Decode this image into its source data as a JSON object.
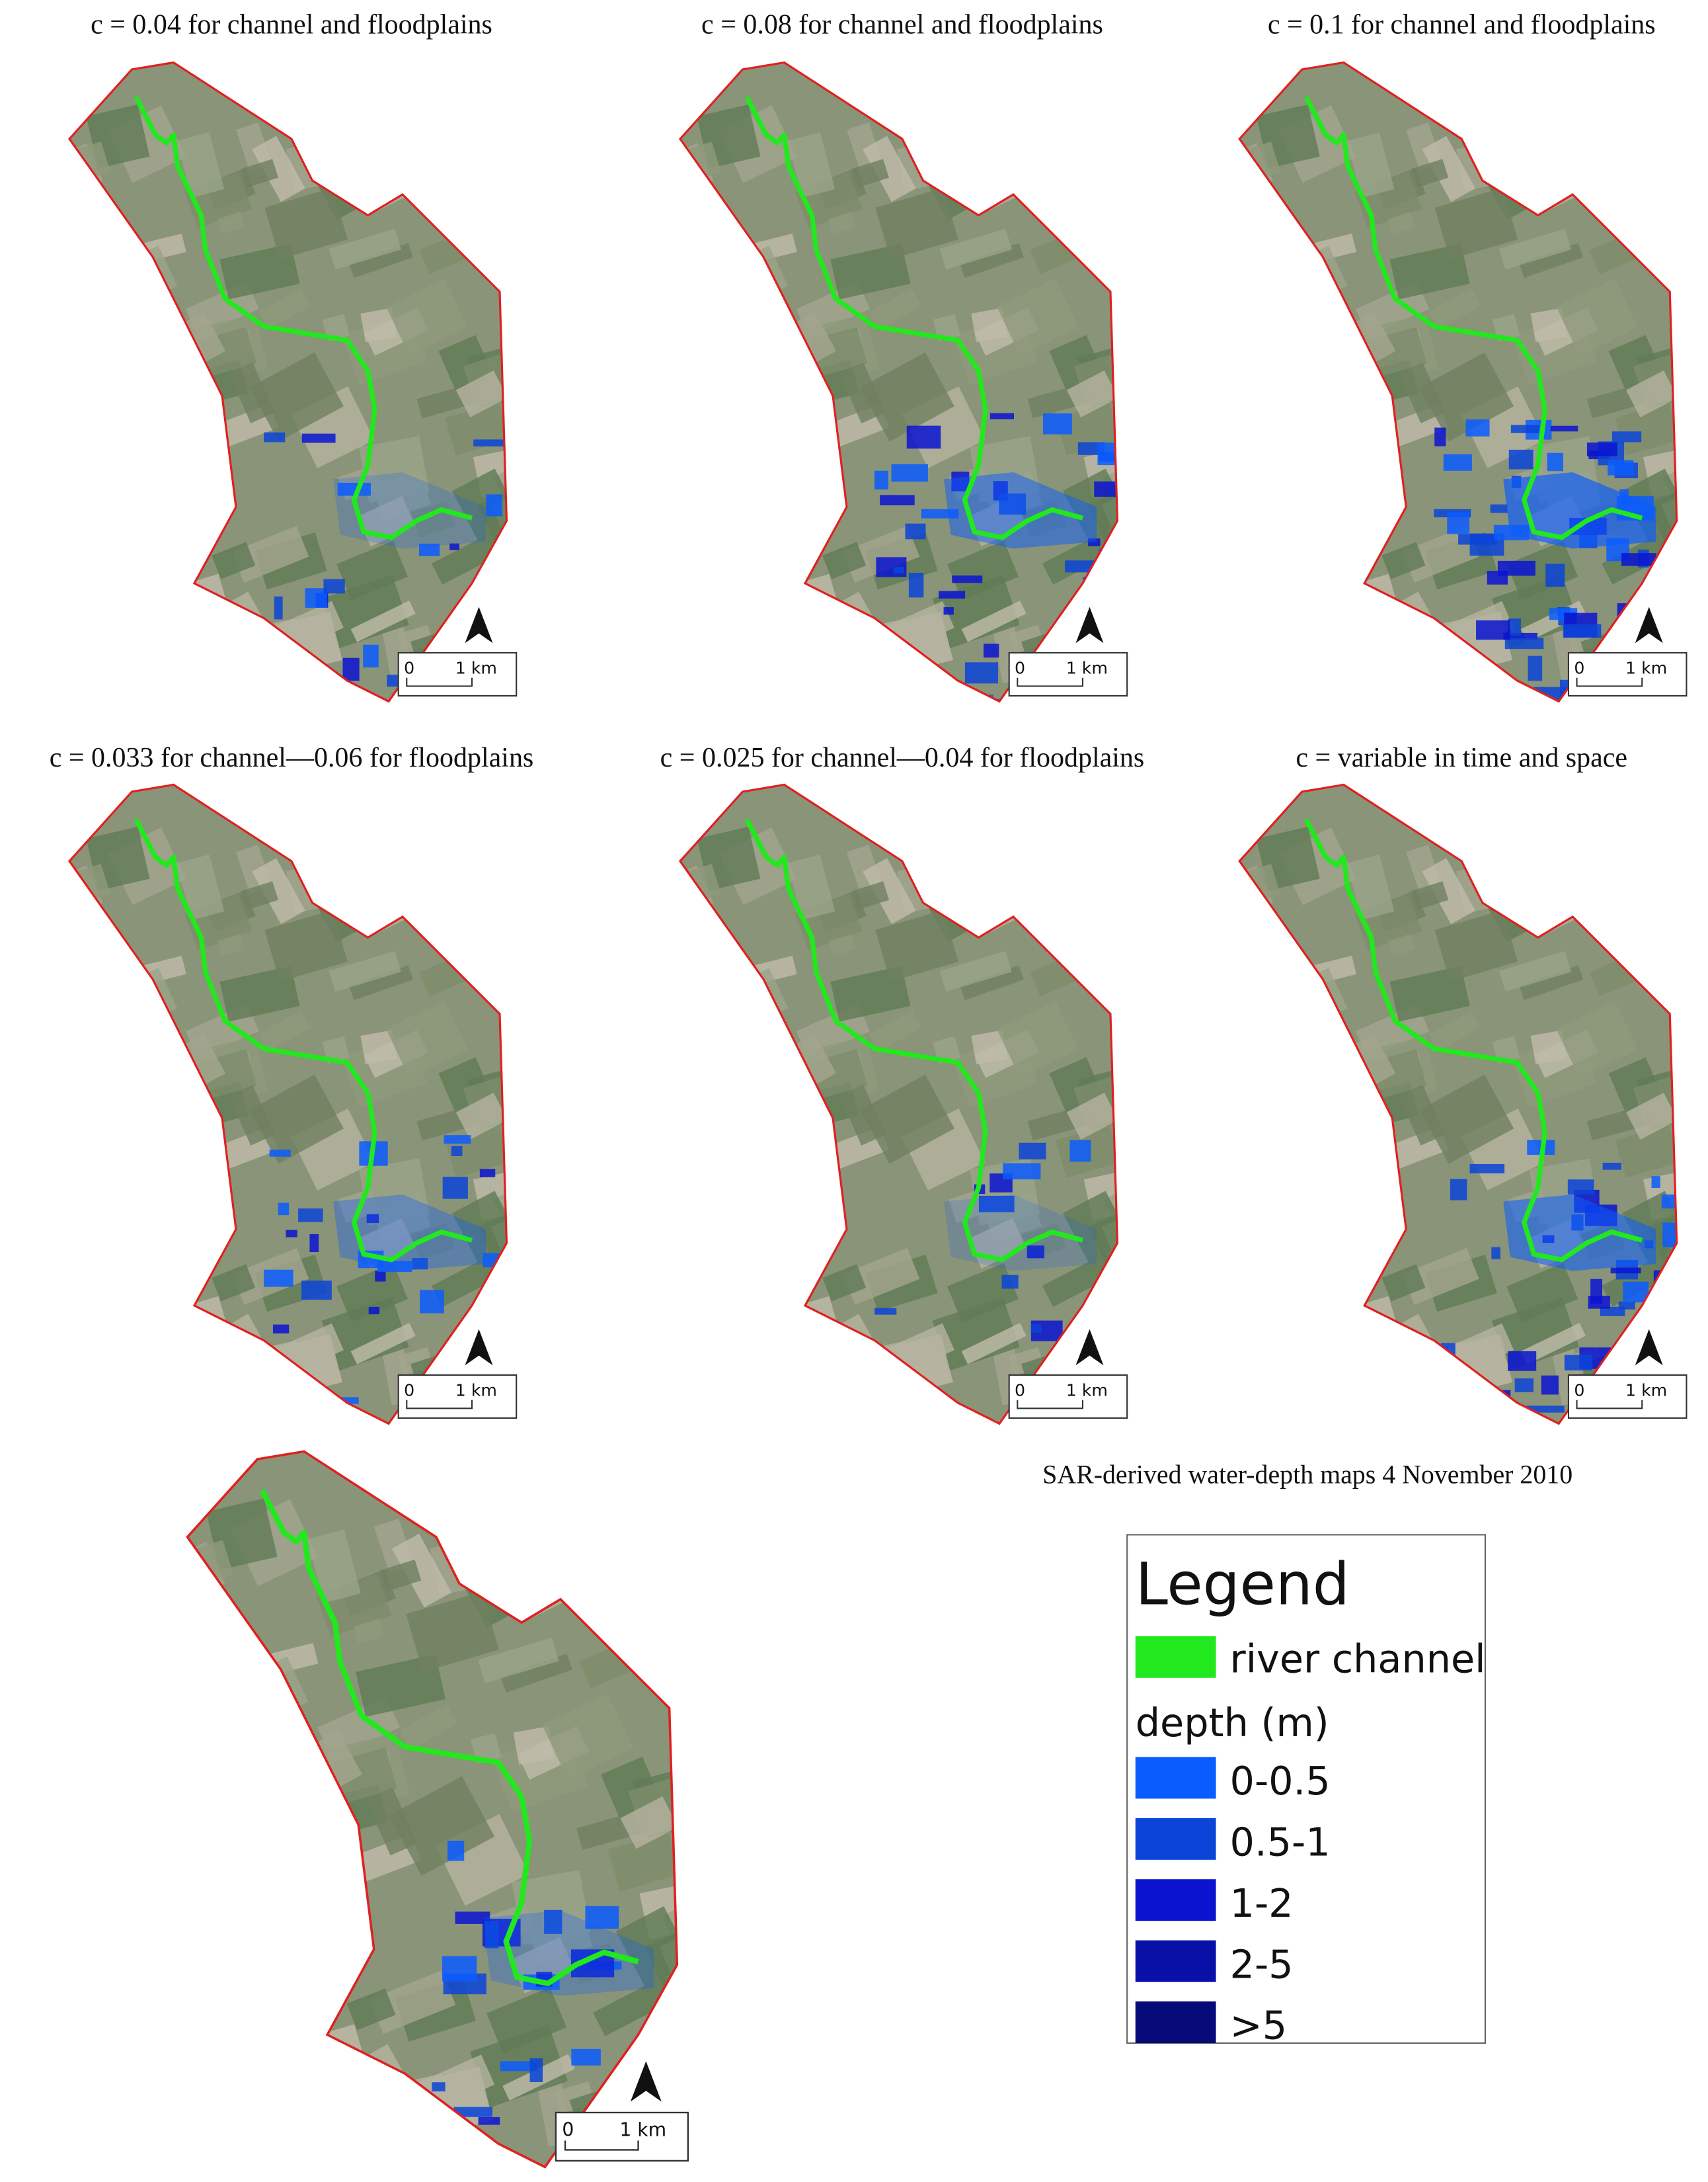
{
  "panels": [
    {
      "title": "c = 0.04 for channel and floodplains",
      "scale": {
        "start": "0",
        "end": "1 km"
      }
    },
    {
      "title": "c = 0.08 for channel and floodplains",
      "scale": {
        "start": "0",
        "end": "1 km"
      }
    },
    {
      "title": "c = 0.1 for channel and floodplains",
      "scale": {
        "start": "0",
        "end": "1 km"
      }
    },
    {
      "title": "c = 0.033 for channel—0.06 for floodplains",
      "scale": {
        "start": "0",
        "end": "1 km"
      }
    },
    {
      "title": "c = 0.025 for channel—0.04 for floodplains",
      "scale": {
        "start": "0",
        "end": "1 km"
      }
    },
    {
      "title": "c = variable in time and space",
      "scale": {
        "start": "0",
        "end": "1 km"
      }
    },
    {
      "scale": {
        "start": "0",
        "end": "1 km"
      }
    }
  ],
  "caption": "SAR-derived water-depth maps 4 November 2010",
  "legend": {
    "title": "Legend",
    "river": {
      "label": "river channel",
      "color": "#22e81e"
    },
    "depth_title": "depth (m)",
    "classes": [
      {
        "label": "0-0.5",
        "color": "#0b5cff"
      },
      {
        "label": "0.5-1",
        "color": "#0a44d8"
      },
      {
        "label": "1-2",
        "color": "#0a14d0"
      },
      {
        "label": "2-5",
        "color": "#0810a8"
      },
      {
        "label": ">5",
        "color": "#060a78"
      }
    ]
  }
}
